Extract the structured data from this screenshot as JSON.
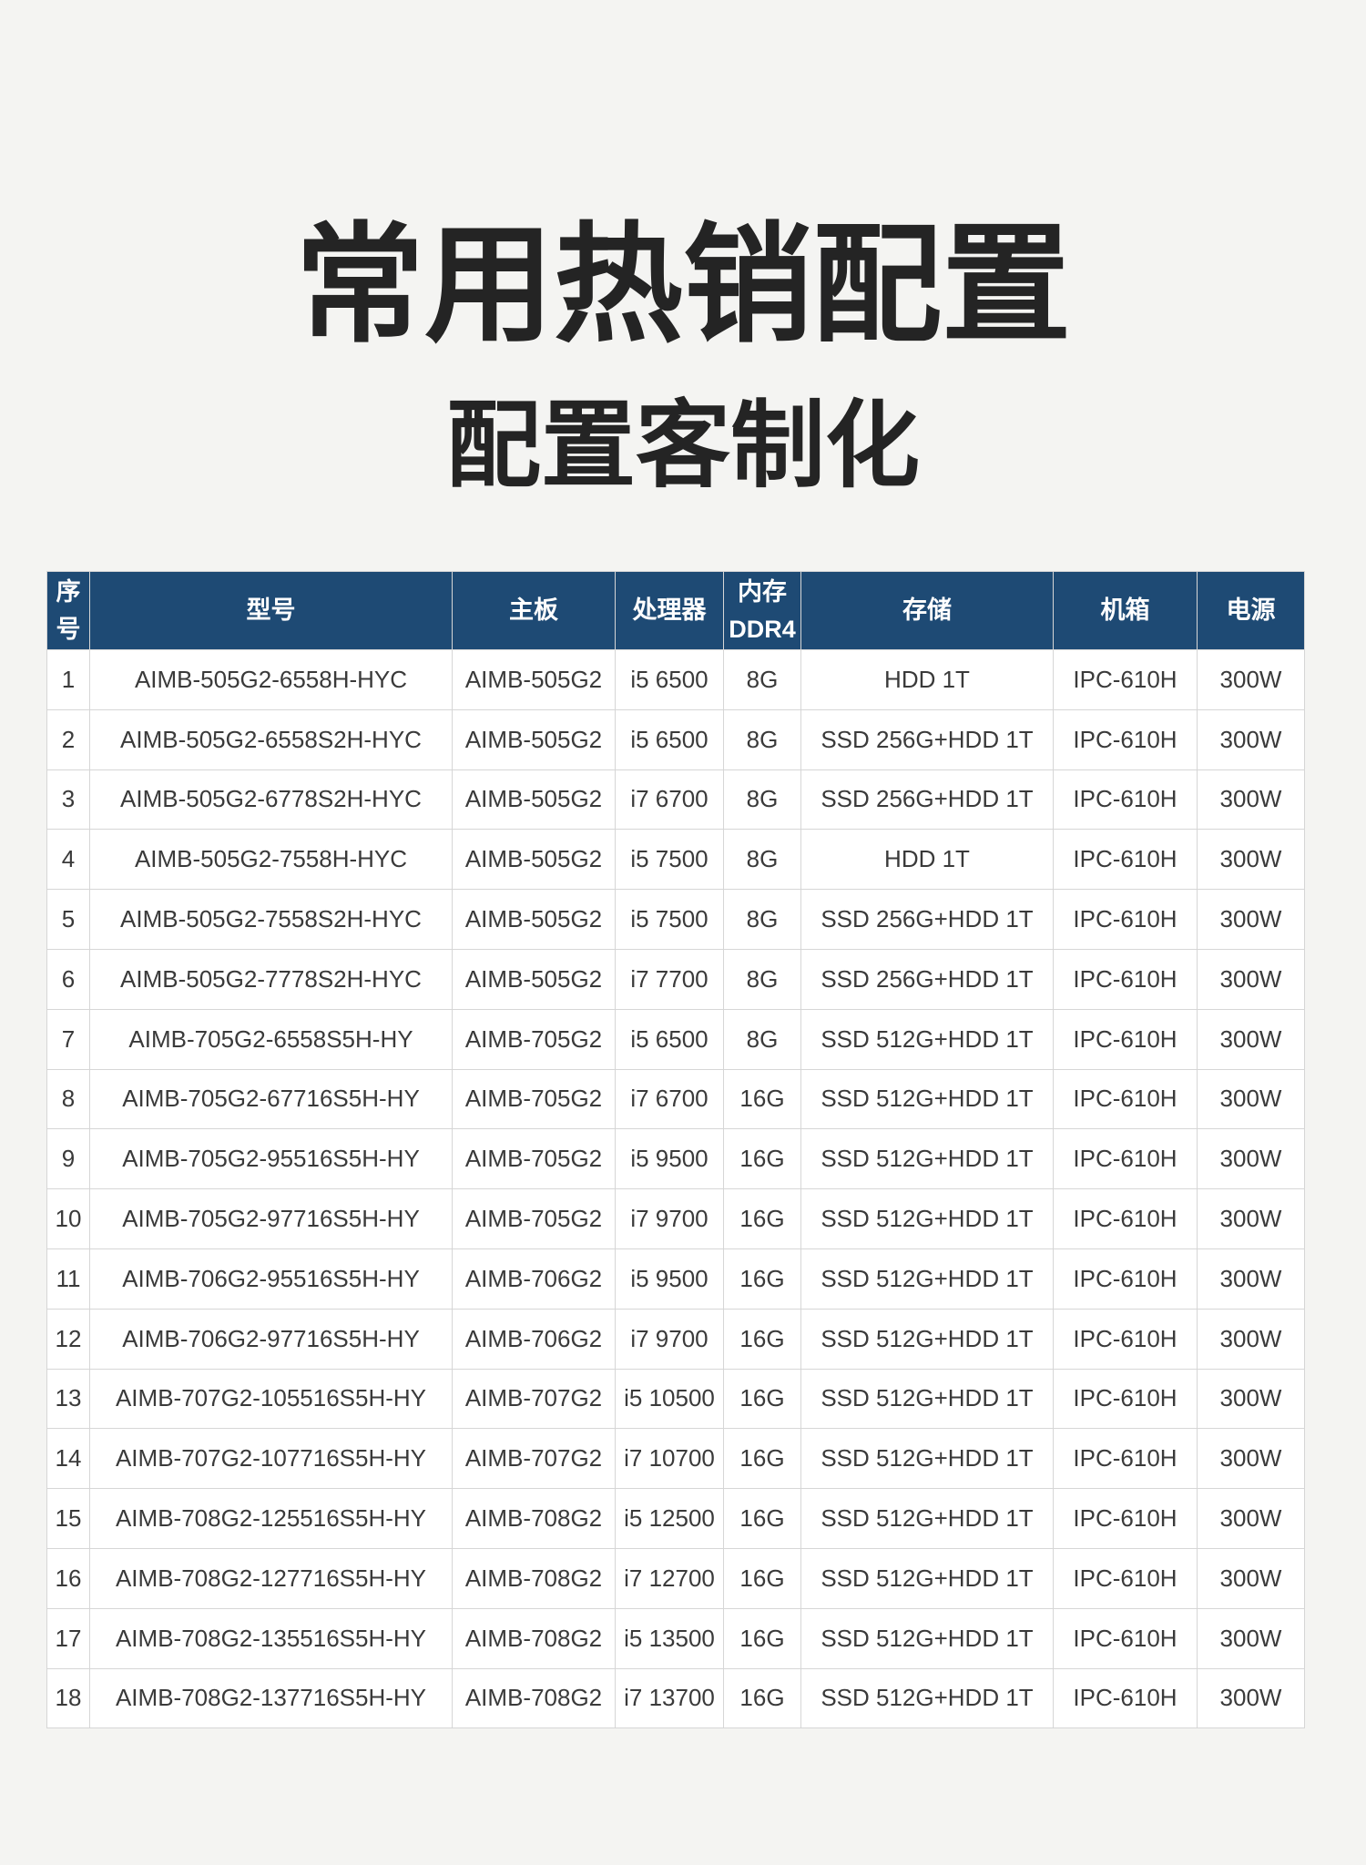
{
  "page": {
    "title": "常用热销配置",
    "subtitle": "配置客制化"
  },
  "colors": {
    "page_bg": "#f4f4f2",
    "header_bg": "#1e4a74",
    "header_text": "#ffffff",
    "row_bg": "#ffffff",
    "border": "#d6d6d6",
    "title_color": "#242424",
    "cell_text": "#3a3a3a"
  },
  "table": {
    "columns": [
      {
        "id": "no",
        "label": "序号"
      },
      {
        "id": "model",
        "label": "型号"
      },
      {
        "id": "motherboard",
        "label": "主板"
      },
      {
        "id": "cpu",
        "label": "处理器"
      },
      {
        "id": "memory",
        "label": "内存 DDR4"
      },
      {
        "id": "storage",
        "label": "存储"
      },
      {
        "id": "chassis",
        "label": "机箱"
      },
      {
        "id": "power",
        "label": "电源"
      }
    ],
    "rows": [
      [
        "1",
        "AIMB-505G2-6558H-HYC",
        "AIMB-505G2",
        "i5 6500",
        "8G",
        "HDD 1T",
        "IPC-610H",
        "300W"
      ],
      [
        "2",
        "AIMB-505G2-6558S2H-HYC",
        "AIMB-505G2",
        "i5 6500",
        "8G",
        "SSD 256G+HDD 1T",
        "IPC-610H",
        "300W"
      ],
      [
        "3",
        "AIMB-505G2-6778S2H-HYC",
        "AIMB-505G2",
        "i7 6700",
        "8G",
        "SSD 256G+HDD 1T",
        "IPC-610H",
        "300W"
      ],
      [
        "4",
        "AIMB-505G2-7558H-HYC",
        "AIMB-505G2",
        "i5 7500",
        "8G",
        "HDD 1T",
        "IPC-610H",
        "300W"
      ],
      [
        "5",
        "AIMB-505G2-7558S2H-HYC",
        "AIMB-505G2",
        "i5 7500",
        "8G",
        "SSD 256G+HDD 1T",
        "IPC-610H",
        "300W"
      ],
      [
        "6",
        "AIMB-505G2-7778S2H-HYC",
        "AIMB-505G2",
        "i7 7700",
        "8G",
        "SSD 256G+HDD 1T",
        "IPC-610H",
        "300W"
      ],
      [
        "7",
        "AIMB-705G2-6558S5H-HY",
        "AIMB-705G2",
        "i5 6500",
        "8G",
        "SSD 512G+HDD 1T",
        "IPC-610H",
        "300W"
      ],
      [
        "8",
        "AIMB-705G2-67716S5H-HY",
        "AIMB-705G2",
        "i7 6700",
        "16G",
        "SSD 512G+HDD 1T",
        "IPC-610H",
        "300W"
      ],
      [
        "9",
        "AIMB-705G2-95516S5H-HY",
        "AIMB-705G2",
        "i5 9500",
        "16G",
        "SSD 512G+HDD 1T",
        "IPC-610H",
        "300W"
      ],
      [
        "10",
        "AIMB-705G2-97716S5H-HY",
        "AIMB-705G2",
        "i7 9700",
        "16G",
        "SSD 512G+HDD 1T",
        "IPC-610H",
        "300W"
      ],
      [
        "11",
        "AIMB-706G2-95516S5H-HY",
        "AIMB-706G2",
        "i5 9500",
        "16G",
        "SSD 512G+HDD 1T",
        "IPC-610H",
        "300W"
      ],
      [
        "12",
        "AIMB-706G2-97716S5H-HY",
        "AIMB-706G2",
        "i7 9700",
        "16G",
        "SSD 512G+HDD 1T",
        "IPC-610H",
        "300W"
      ],
      [
        "13",
        "AIMB-707G2-105516S5H-HY",
        "AIMB-707G2",
        "i5 10500",
        "16G",
        "SSD 512G+HDD 1T",
        "IPC-610H",
        "300W"
      ],
      [
        "14",
        "AIMB-707G2-107716S5H-HY",
        "AIMB-707G2",
        "i7 10700",
        "16G",
        "SSD 512G+HDD 1T",
        "IPC-610H",
        "300W"
      ],
      [
        "15",
        "AIMB-708G2-125516S5H-HY",
        "AIMB-708G2",
        "i5 12500",
        "16G",
        "SSD 512G+HDD 1T",
        "IPC-610H",
        "300W"
      ],
      [
        "16",
        "AIMB-708G2-127716S5H-HY",
        "AIMB-708G2",
        "i7 12700",
        "16G",
        "SSD 512G+HDD 1T",
        "IPC-610H",
        "300W"
      ],
      [
        "17",
        "AIMB-708G2-135516S5H-HY",
        "AIMB-708G2",
        "i5 13500",
        "16G",
        "SSD 512G+HDD 1T",
        "IPC-610H",
        "300W"
      ],
      [
        "18",
        "AIMB-708G2-137716S5H-HY",
        "AIMB-708G2",
        "i7 13700",
        "16G",
        "SSD 512G+HDD 1T",
        "IPC-610H",
        "300W"
      ]
    ]
  }
}
